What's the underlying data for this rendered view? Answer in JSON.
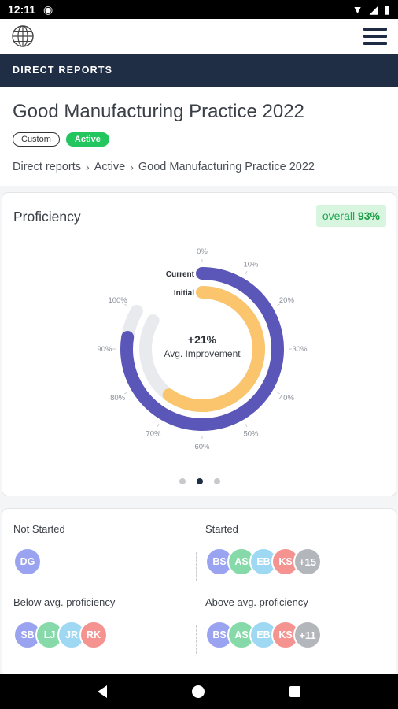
{
  "status": {
    "time": "12:11"
  },
  "section_header": "DIRECT REPORTS",
  "page": {
    "title": "Good Manufacturing Practice 2022",
    "badges": {
      "custom": "Custom",
      "active": "Active"
    },
    "breadcrumb": [
      "Direct reports",
      "Active",
      "Good Manufacturing Practice 2022"
    ]
  },
  "proficiency": {
    "title": "Proficiency",
    "overall_label": "overall",
    "overall_value": "93%"
  },
  "chart_data": {
    "type": "radial-bar",
    "series": [
      {
        "name": "Current",
        "value": 93,
        "color": "#5b57b9"
      },
      {
        "name": "Initial",
        "value": 72,
        "color": "#fbc56d"
      }
    ],
    "center_value": "+21%",
    "center_label": "Avg. Improvement",
    "tick_labels": [
      "0%",
      "10%",
      "20%",
      "30%",
      "40%",
      "50%",
      "60%",
      "70%",
      "80%",
      "90%",
      "100%"
    ]
  },
  "groups": [
    {
      "label": "Not Started",
      "avatars": [
        {
          "initials": "DG",
          "color": "#9aa3f0"
        }
      ],
      "more": ""
    },
    {
      "label": "Started",
      "avatars": [
        {
          "initials": "BS",
          "color": "#9aa3f0"
        },
        {
          "initials": "AS",
          "color": "#86d9a8"
        },
        {
          "initials": "EB",
          "color": "#9fd8f3"
        },
        {
          "initials": "KS",
          "color": "#f59391"
        }
      ],
      "more": "+15"
    },
    {
      "label": "Below avg. proficiency",
      "avatars": [
        {
          "initials": "SB",
          "color": "#9aa3f0"
        },
        {
          "initials": "LJ",
          "color": "#86d9a8"
        },
        {
          "initials": "JR",
          "color": "#9fd8f3"
        },
        {
          "initials": "RK",
          "color": "#f59391"
        }
      ],
      "more": ""
    },
    {
      "label": "Above avg. proficiency",
      "avatars": [
        {
          "initials": "BS",
          "color": "#9aa3f0"
        },
        {
          "initials": "AS",
          "color": "#86d9a8"
        },
        {
          "initials": "EB",
          "color": "#9fd8f3"
        },
        {
          "initials": "KS",
          "color": "#f59391"
        }
      ],
      "more": "+11"
    }
  ],
  "colors": {
    "navy": "#1f2d45",
    "green": "#22c55e",
    "more_avatar": "#b3b6ba"
  }
}
